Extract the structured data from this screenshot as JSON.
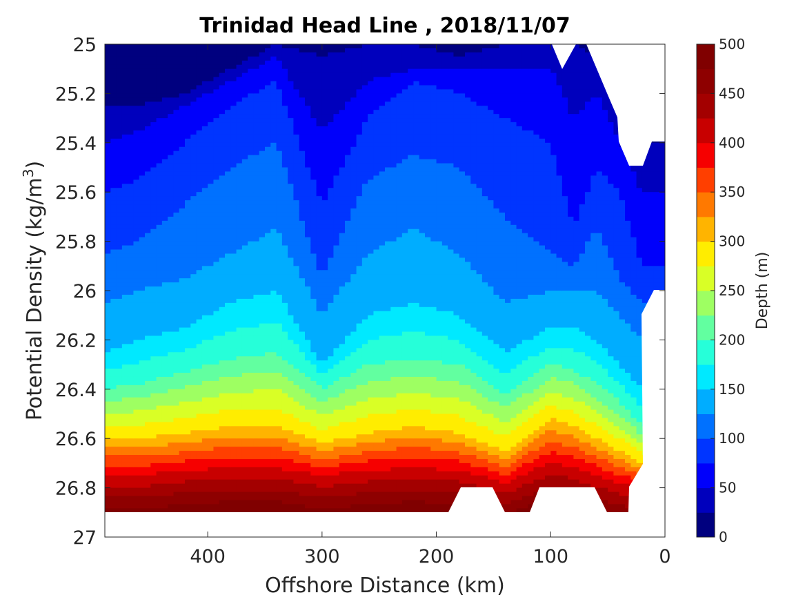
{
  "chart_data": {
    "type": "contour",
    "title": "Trinidad Head Line , 2018/11/07",
    "xlabel": "Offshore Distance (km)",
    "ylabel_main": "Potential Density (kg/m",
    "ylabel_sup": "3",
    "ylabel_close": ")",
    "xlim": [
      490,
      0
    ],
    "x_reversed": true,
    "ylim": [
      25,
      27
    ],
    "y_reversed": true,
    "x_ticks": [
      400,
      300,
      200,
      100,
      0
    ],
    "y_ticks": [
      25,
      25.2,
      25.4,
      25.6,
      25.8,
      26,
      26.2,
      26.4,
      26.6,
      26.8,
      27
    ],
    "y_tick_labels": [
      "25",
      "25.2",
      "25.4",
      "25.6",
      "25.8",
      "26",
      "26.2",
      "26.4",
      "26.6",
      "26.8",
      "27"
    ],
    "colorbar": {
      "label": "Depth (m)",
      "min": 0,
      "max": 500,
      "ticks": [
        0,
        50,
        100,
        150,
        200,
        250,
        300,
        350,
        400,
        450,
        500
      ],
      "levels": [
        0,
        25,
        50,
        75,
        100,
        125,
        150,
        175,
        200,
        225,
        250,
        275,
        300,
        325,
        350,
        375,
        400,
        425,
        450,
        475,
        500
      ],
      "colormap": "jet",
      "colors": [
        "#00007f",
        "#0000bd",
        "#0000fb",
        "#0035ff",
        "#0071ff",
        "#00adff",
        "#00e9ff",
        "#26ffd9",
        "#62ffa0",
        "#9eff62",
        "#d9ff26",
        "#ffed00",
        "#ffb400",
        "#ff7900",
        "#ff3f00",
        "#f60000",
        "#c80000",
        "#a30000",
        "#8e0000",
        "#800000"
      ]
    },
    "contour_isopycnals": [
      {
        "depth": 25,
        "x": [
          490,
          460,
          420,
          380,
          340,
          300,
          260,
          220,
          180,
          140,
          100,
          80,
          60,
          40,
          20
        ],
        "y": [
          25.25,
          25.25,
          25.2,
          25.1,
          25.0,
          25.05,
          25.0,
          25.0,
          25.05,
          25.0,
          25.0,
          25.0,
          25.05,
          25.2,
          25.4
        ]
      },
      {
        "depth": 50,
        "x": [
          490,
          460,
          420,
          380,
          340,
          300,
          260,
          220,
          180,
          140,
          100,
          80,
          60,
          40,
          20
        ],
        "y": [
          25.4,
          25.35,
          25.25,
          25.15,
          25.05,
          25.35,
          25.15,
          25.1,
          25.1,
          25.1,
          25.1,
          25.3,
          25.2,
          25.4,
          25.6
        ]
      },
      {
        "depth": 75,
        "x": [
          490,
          460,
          420,
          380,
          340,
          300,
          260,
          220,
          180,
          140,
          100,
          80,
          60,
          40,
          20
        ],
        "y": [
          25.6,
          25.55,
          25.4,
          25.25,
          25.15,
          25.65,
          25.3,
          25.15,
          25.2,
          25.3,
          25.4,
          25.75,
          25.5,
          25.6,
          25.9
        ]
      },
      {
        "depth": 100,
        "x": [
          490,
          460,
          420,
          380,
          340,
          300,
          260,
          220,
          180,
          140,
          100,
          80,
          60,
          40,
          20
        ],
        "y": [
          25.85,
          25.8,
          25.65,
          25.5,
          25.4,
          25.95,
          25.55,
          25.45,
          25.5,
          25.7,
          25.85,
          25.9,
          25.75,
          25.95,
          26.05
        ]
      },
      {
        "depth": 125,
        "x": [
          490,
          460,
          420,
          380,
          340,
          300,
          260,
          220,
          180,
          140,
          100,
          80,
          60,
          40,
          20
        ],
        "y": [
          26.05,
          26.0,
          25.95,
          25.85,
          25.75,
          26.1,
          25.85,
          25.75,
          25.85,
          26.05,
          26.0,
          26.0,
          26.0,
          26.1,
          26.2
        ]
      },
      {
        "depth": 150,
        "x": [
          490,
          460,
          420,
          380,
          340,
          300,
          260,
          220,
          180,
          140,
          100,
          80,
          60,
          40,
          20
        ],
        "y": [
          26.25,
          26.2,
          26.15,
          26.05,
          26.0,
          26.3,
          26.1,
          26.05,
          26.1,
          26.25,
          26.15,
          26.15,
          26.2,
          26.3,
          26.4
        ]
      },
      {
        "depth": 200,
        "x": [
          490,
          460,
          420,
          380,
          340,
          300,
          260,
          220,
          180,
          140,
          100,
          80,
          60,
          40,
          20
        ],
        "y": [
          26.4,
          26.38,
          26.33,
          26.28,
          26.25,
          26.4,
          26.3,
          26.28,
          26.3,
          26.42,
          26.3,
          26.32,
          26.38,
          26.45,
          26.55
        ]
      },
      {
        "depth": 300,
        "x": [
          490,
          460,
          420,
          380,
          340,
          300,
          260,
          220,
          180,
          140,
          100,
          80,
          60,
          40,
          20
        ],
        "y": [
          26.6,
          26.6,
          26.58,
          26.55,
          26.55,
          26.62,
          26.58,
          26.55,
          26.58,
          26.65,
          26.52,
          26.55,
          26.6,
          26.65,
          26.7
        ]
      },
      {
        "depth": 400,
        "x": [
          490,
          460,
          420,
          380,
          340,
          300,
          260,
          220,
          180,
          140,
          100,
          80,
          60,
          40,
          20
        ],
        "y": [
          26.75,
          26.75,
          26.73,
          26.72,
          26.72,
          26.75,
          26.73,
          26.72,
          26.73,
          26.78,
          26.7,
          26.72,
          26.75,
          26.78,
          26.8
        ]
      }
    ]
  }
}
